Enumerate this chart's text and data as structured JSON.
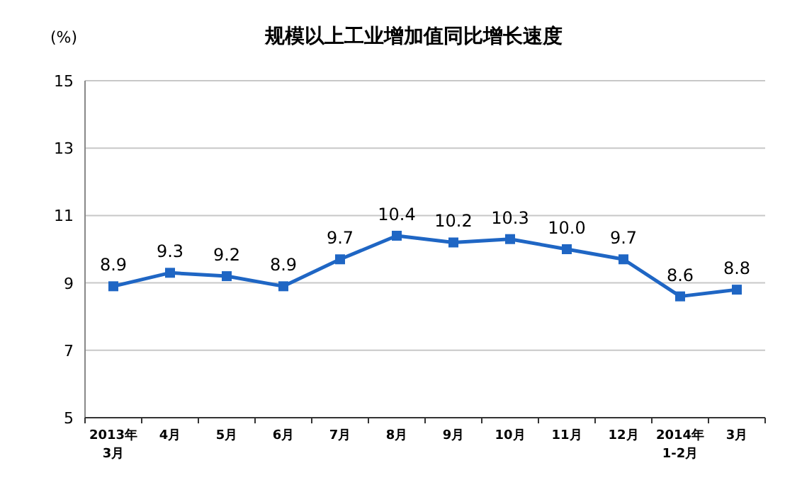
{
  "chart_data": {
    "type": "line",
    "title": "规模以上工业增加值同比增长速度",
    "ylabel": "(%)",
    "categories": [
      "2013年\n3月",
      "4月",
      "5月",
      "6月",
      "7月",
      "8月",
      "9月",
      "10月",
      "11月",
      "12月",
      "2014年\n1-2月",
      "3月"
    ],
    "series": [
      {
        "color": "#1f66c4",
        "values": [
          8.9,
          9.3,
          9.2,
          8.9,
          9.7,
          10.4,
          10.2,
          10.3,
          10.0,
          9.7,
          8.6,
          8.8
        ],
        "value_labels": [
          "8.9",
          "9.3",
          "9.2",
          "8.9",
          "9.7",
          "10.4",
          "10.2",
          "10.3",
          "10.0",
          "9.7",
          "8.6",
          "8.8"
        ]
      }
    ],
    "ylim": [
      5,
      15
    ],
    "yticks": [
      5,
      7,
      9,
      11,
      13,
      15
    ],
    "grid": "y",
    "marker": "square",
    "line_style": "solid"
  }
}
